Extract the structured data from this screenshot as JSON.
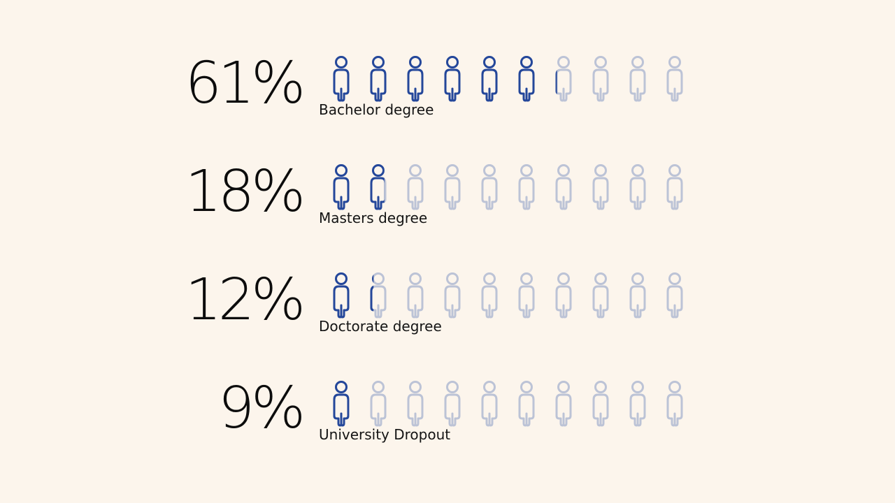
{
  "colors": {
    "background": "#FCF5EC",
    "icon_filled": "#24479A",
    "icon_empty": "#BCC3D6",
    "text": "#0C0C0C"
  },
  "chart_data": {
    "type": "pictograph",
    "icons_per_row": 10,
    "icon": "person-icon",
    "rows": [
      {
        "value": 61,
        "value_label": "61%",
        "label": "Bachelor degree"
      },
      {
        "value": 18,
        "value_label": "18%",
        "label": "Masters degree"
      },
      {
        "value": 12,
        "value_label": "12%",
        "label": "Doctorate degree"
      },
      {
        "value": 9,
        "value_label": "9%",
        "label": "University Dropout"
      }
    ]
  }
}
